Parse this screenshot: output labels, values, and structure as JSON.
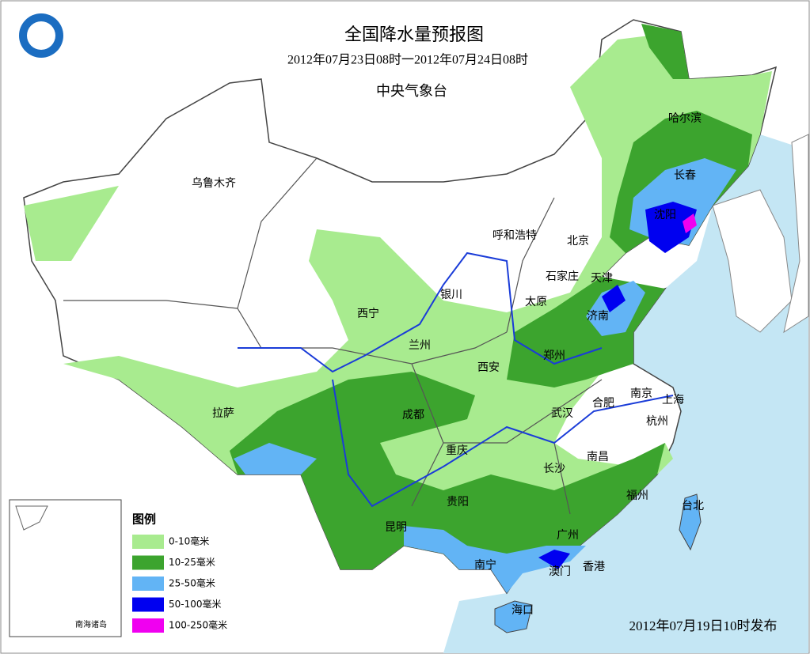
{
  "header": {
    "title": "全国降水量预报图",
    "period": "2012年07月23日08时一2012年07月24日08时",
    "issuer": "中央气象台"
  },
  "cities": [
    "乌鲁木齐",
    "呼和浩特",
    "北京",
    "哈尔滨",
    "长春",
    "沈阳",
    "天津",
    "石家庄",
    "太原",
    "银川",
    "西宁",
    "兰州",
    "济南",
    "郑州",
    "西安",
    "拉萨",
    "成都",
    "合肥",
    "南京",
    "上海",
    "武汉",
    "杭州",
    "重庆",
    "南昌",
    "长沙",
    "贵阳",
    "福州",
    "台北",
    "昆明",
    "广州",
    "南宁",
    "澳门",
    "香港",
    "海口"
  ],
  "legend": {
    "title": "图例",
    "items": [
      {
        "label": "0-10毫米",
        "color": "#a8eb8f"
      },
      {
        "label": "10-25毫米",
        "color": "#3ca42e"
      },
      {
        "label": "25-50毫米",
        "color": "#62b4f5"
      },
      {
        "label": "50-100毫米",
        "color": "#0000f0"
      },
      {
        "label": "100-250毫米",
        "color": "#f000f0"
      }
    ]
  },
  "inset": {
    "label": "南海诸岛"
  },
  "footer": {
    "issued": "2012年07月19日10时发布"
  }
}
